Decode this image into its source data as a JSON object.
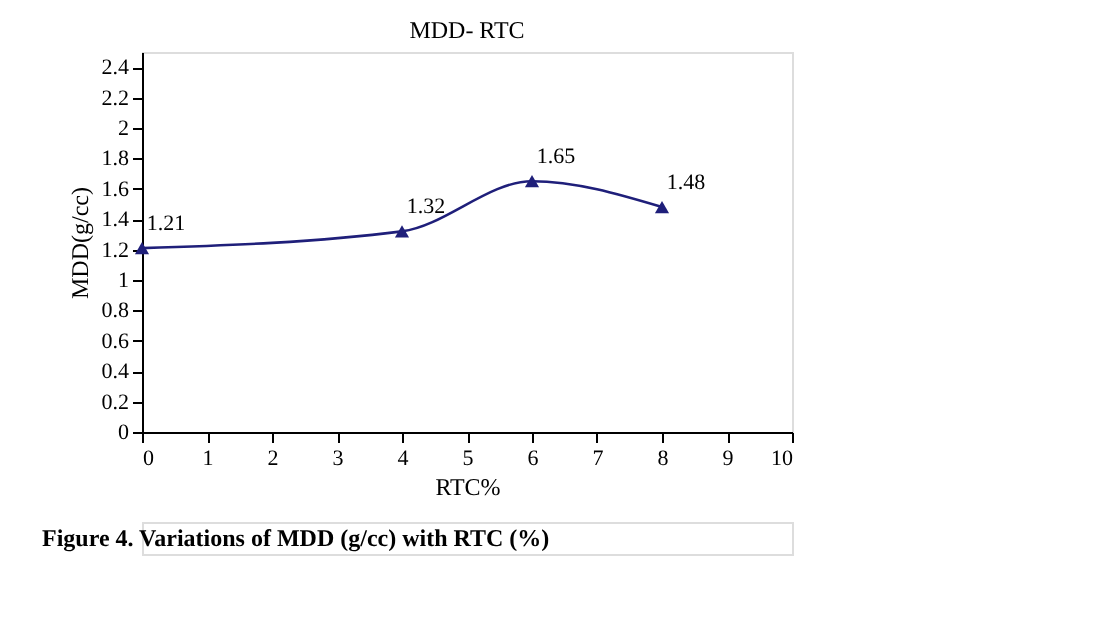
{
  "chart_data": {
    "type": "line",
    "title": "MDD- RTC",
    "xlabel": "RTC%",
    "ylabel": "MDD(g/cc)",
    "x": [
      0,
      4,
      6,
      8
    ],
    "series": [
      {
        "color": "#1f1f7a",
        "values": [
          1.21,
          1.32,
          1.65,
          1.48
        ]
      }
    ],
    "xlim": [
      0,
      10
    ],
    "xticks": [
      0,
      1,
      2,
      3,
      4,
      5,
      6,
      7,
      8,
      9,
      10
    ],
    "ylim": [
      0,
      2.5
    ],
    "yticks": [
      0,
      0.2,
      0.4,
      0.6,
      0.8,
      1,
      1.2,
      1.4,
      1.6,
      1.8,
      2,
      2.2,
      2.4
    ],
    "marker": "triangle",
    "line_style": "solid",
    "grid": false,
    "legend": false,
    "data_labels": true,
    "annotations": [
      "Figure 4. Variations of MDD (g/cc) with RTC (%)"
    ]
  }
}
